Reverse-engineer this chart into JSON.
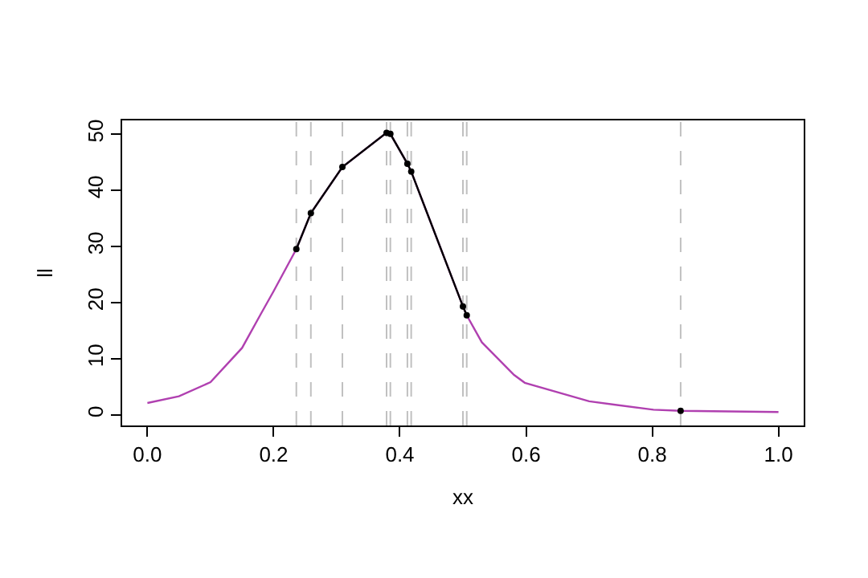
{
  "chart_data": {
    "type": "line",
    "xlabel": "xx",
    "ylabel": "ll",
    "xlim": [
      -0.04,
      1.04
    ],
    "ylim": [
      -1.9,
      52.4
    ],
    "xticks": [
      {
        "value": 0,
        "label": "0.0"
      },
      0.2,
      0.4,
      0.6,
      0.8,
      {
        "value": 1,
        "label": "1.0"
      }
    ],
    "yticks": [
      0,
      10,
      20,
      30,
      40,
      50
    ],
    "grid": false,
    "series": [
      {
        "color": "#b040b0",
        "marker": "none",
        "line_style": "solid",
        "x": [
          0,
          0.05,
          0.1,
          0.15,
          0.18,
          0.2,
          0.236,
          0.259,
          0.309,
          0.379,
          0.385,
          0.412,
          0.418,
          0.5,
          0.506,
          0.53,
          0.581,
          0.598,
          0.7,
          0.802,
          0.845,
          1.0
        ],
        "values": [
          2.1,
          3.3,
          5.8,
          11.9,
          18,
          22,
          29.5,
          35.9,
          44.1,
          50.2,
          50,
          44.7,
          43.3,
          19.3,
          17.7,
          12.9,
          7.1,
          5.7,
          2.4,
          0.9,
          0.7,
          0.5
        ]
      },
      {
        "color": "#000000",
        "marker": "circle",
        "line_style": "solid",
        "x": [
          0.236,
          0.259,
          0.309,
          0.379,
          0.385,
          0.412,
          0.418,
          0.5,
          0.506
        ],
        "values": [
          29.5,
          35.9,
          44.1,
          50.2,
          50,
          44.7,
          43.3,
          19.3,
          17.7
        ]
      },
      {
        "type": "scatter",
        "color": "#000000",
        "marker": "circle",
        "x": [
          0.845
        ],
        "values": [
          0.7
        ]
      }
    ],
    "ref_lines": [
      {
        "axis": "x",
        "value": 0.236,
        "color": "#c0c0c0",
        "line_style": "dashed"
      },
      {
        "axis": "x",
        "value": 0.259,
        "color": "#c0c0c0",
        "line_style": "dashed"
      },
      {
        "axis": "x",
        "value": 0.309,
        "color": "#c0c0c0",
        "line_style": "dashed"
      },
      {
        "axis": "x",
        "value": 0.379,
        "color": "#c0c0c0",
        "line_style": "dashed"
      },
      {
        "axis": "x",
        "value": 0.385,
        "color": "#c0c0c0",
        "line_style": "dashed"
      },
      {
        "axis": "x",
        "value": 0.412,
        "color": "#c0c0c0",
        "line_style": "dashed"
      },
      {
        "axis": "x",
        "value": 0.418,
        "color": "#c0c0c0",
        "line_style": "dashed"
      },
      {
        "axis": "x",
        "value": 0.5,
        "color": "#c0c0c0",
        "line_style": "dashed"
      },
      {
        "axis": "x",
        "value": 0.506,
        "color": "#c0c0c0",
        "line_style": "dashed"
      },
      {
        "axis": "x",
        "value": 0.845,
        "color": "#c0c0c0",
        "line_style": "dashed"
      }
    ]
  }
}
